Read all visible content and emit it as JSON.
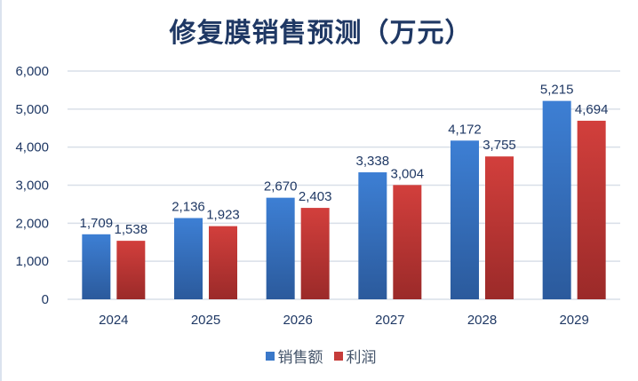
{
  "chart_data": {
    "type": "bar",
    "title": "修复膜销售预测（万元）",
    "categories": [
      "2024",
      "2025",
      "2026",
      "2027",
      "2028",
      "2029"
    ],
    "series": [
      {
        "name": "销售额",
        "values": [
          1709,
          2136,
          2670,
          3338,
          4172,
          5215
        ],
        "color": "#3a78c9"
      },
      {
        "name": "利润",
        "values": [
          1538,
          1923,
          2403,
          3004,
          3755,
          4694
        ],
        "color": "#c63c3a"
      }
    ],
    "y_ticks": [
      "0",
      "1,000",
      "2,000",
      "3,000",
      "4,000",
      "5,000",
      "6,000"
    ],
    "ylim": [
      0,
      6000
    ],
    "grid": true,
    "legend": "bottom",
    "data_labels": true
  }
}
